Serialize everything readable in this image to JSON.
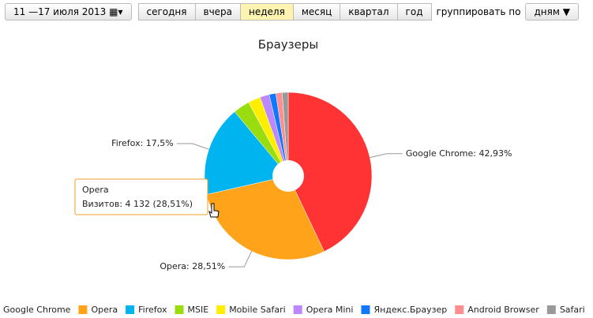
{
  "toolbar": {
    "date_range": "11 —17 июля 2013",
    "periods": [
      "сегодня",
      "вчера",
      "неделя",
      "месяц",
      "квартал",
      "год"
    ],
    "active_period": 2,
    "group_label": "группировать по",
    "group_value": "дням"
  },
  "chart_data": {
    "type": "pie",
    "title": "Браузеры",
    "categories": [
      "Google Chrome",
      "Opera",
      "Firefox",
      "MSIE",
      "Mobile Safari",
      "Opera Mini",
      "Яндекс.Браузер",
      "Android Browser",
      "Safari"
    ],
    "values": [
      42.93,
      28.51,
      17.5,
      3.2,
      2.4,
      1.8,
      1.3,
      1.2,
      1.16
    ],
    "value_labels": [
      "Google Chrome: 42,93%",
      "Opera: 28,51%",
      "Firefox: 17,5%",
      null,
      null,
      null,
      null,
      null,
      null
    ],
    "colors": [
      "#ff3333",
      "#ffa31a",
      "#00b4f0",
      "#99dd11",
      "#ffee00",
      "#bb88ff",
      "#1177ff",
      "#ff8f8f",
      "#999999"
    ],
    "tooltip": {
      "title": "Opera",
      "text": "Визитов: 4 132 (28,51%)"
    }
  }
}
